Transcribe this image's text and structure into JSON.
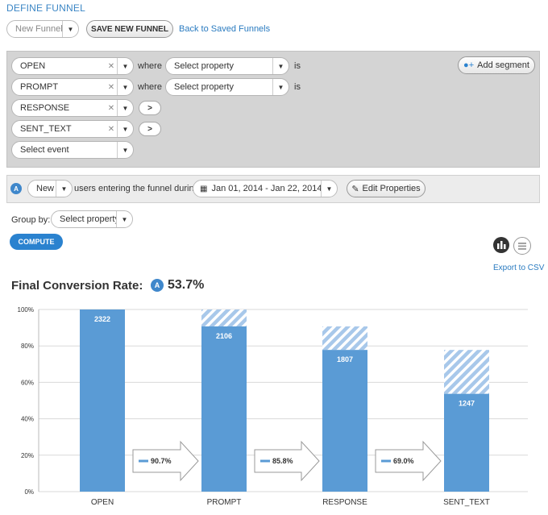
{
  "header": {
    "title": "DEFINE FUNNEL"
  },
  "toolbar": {
    "funnel_select": "New Funnel",
    "save_label": "SAVE NEW FUNNEL",
    "back_link": "Back to Saved Funnels"
  },
  "segments": {
    "add_segment_label": "Add segment",
    "steps": [
      {
        "event": "OPEN",
        "where": "where",
        "property": "Select property",
        "is": "is"
      },
      {
        "event": "PROMPT",
        "where": "where",
        "property": "Select property",
        "is": "is"
      },
      {
        "event": "RESPONSE"
      },
      {
        "event": "SENT_TEXT"
      }
    ],
    "select_event": "Select event"
  },
  "users": {
    "badge": "A",
    "cohort": "New",
    "entering_text": "users entering the funnel during",
    "date_range": "Jan 01, 2014 - Jan 22, 2014",
    "edit_properties": "Edit Properties"
  },
  "groupby": {
    "label": "Group by:",
    "property": "Select property"
  },
  "compute_label": "COMPUTE",
  "export_label": "Export to CSV",
  "final": {
    "label": "Final Conversion Rate:",
    "badge": "A",
    "value": "53.7%"
  },
  "colors": {
    "bar": "#5a9bd5",
    "hatch": "#a8c8ea",
    "accent": "#2a82cf"
  },
  "chart_data": {
    "type": "bar",
    "categories": [
      "OPEN",
      "PROMPT",
      "RESPONSE",
      "SENT_TEXT"
    ],
    "values": [
      2322,
      2106,
      1807,
      1247
    ],
    "percent_of_first": [
      100,
      90.7,
      77.8,
      53.7
    ],
    "previous_step_percent": [
      null,
      100,
      90.7,
      77.8
    ],
    "step_conversion": [
      "90.7%",
      "85.8%",
      "69.0%"
    ],
    "yticks": [
      "0%",
      "20%",
      "40%",
      "60%",
      "80%",
      "100%"
    ],
    "ylim": [
      0,
      100
    ]
  }
}
